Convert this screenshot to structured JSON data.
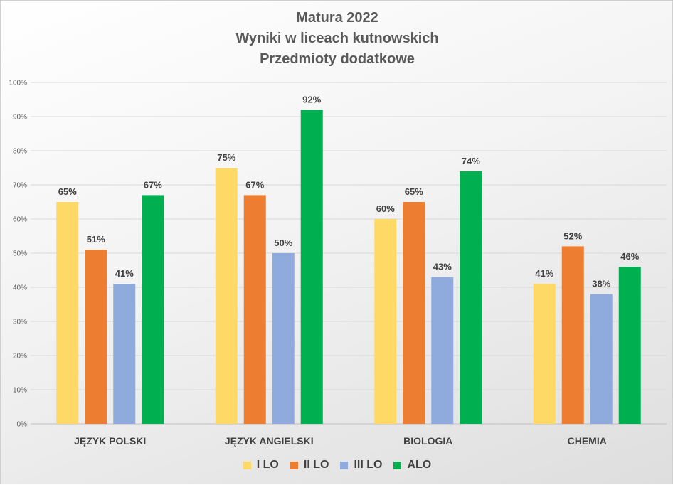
{
  "chart_data": {
    "type": "bar",
    "title": [
      "Matura 2022",
      "Wyniki w liceach kutnowskich",
      "Przedmioty dodatkowe"
    ],
    "categories": [
      "JĘZYK POLSKI",
      "JĘZYK ANGIELSKI",
      "BIOLOGIA",
      "CHEMIA"
    ],
    "series": [
      {
        "name": "I LO",
        "color": "#FFD966",
        "values": [
          65,
          75,
          60,
          41
        ]
      },
      {
        "name": "II LO",
        "color": "#ED7D31",
        "values": [
          51,
          67,
          65,
          52
        ]
      },
      {
        "name": "III LO",
        "color": "#8FAADC",
        "values": [
          41,
          50,
          43,
          38
        ]
      },
      {
        "name": "ALO",
        "color": "#00B050",
        "values": [
          67,
          92,
          74,
          46
        ]
      }
    ],
    "value_suffix": "%",
    "ylim": [
      0,
      100
    ],
    "yticks": [
      "0%",
      "10%",
      "20%",
      "30%",
      "40%",
      "50%",
      "60%",
      "70%",
      "80%",
      "90%",
      "100%"
    ],
    "xlabel": "",
    "ylabel": "",
    "grid": true,
    "legend_position": "bottom"
  }
}
